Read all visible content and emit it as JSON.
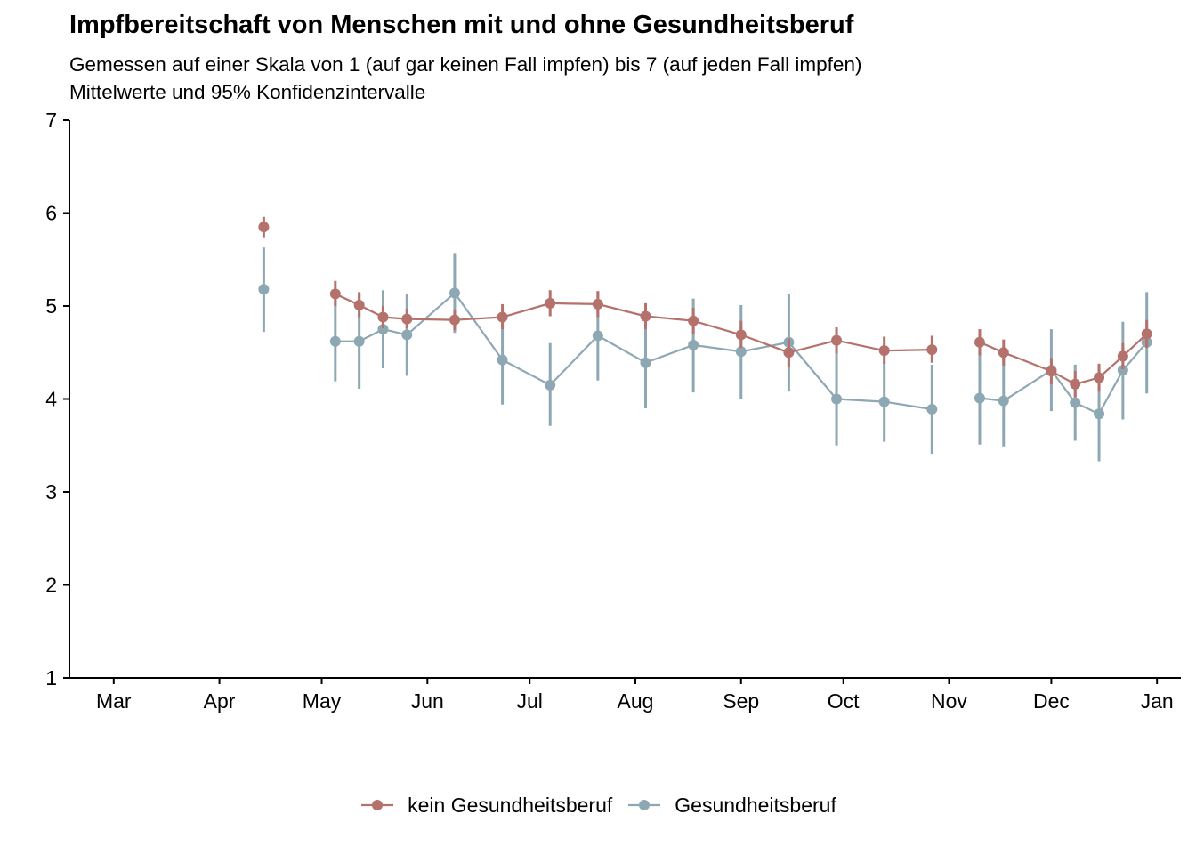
{
  "chart_data": {
    "type": "line",
    "title": "Impfbereitschaft von Menschen mit und ohne Gesundheitsberuf",
    "subtitle_line1": "Gemessen auf einer Skala von 1 (auf gar keinen Fall impfen) bis 7 (auf jeden Fall impfen)",
    "subtitle_line2": "Mittelwerte und 95% Konfidenzintervalle",
    "xlabel": "",
    "ylabel": "",
    "xlim": [
      -13,
      313
    ],
    "ylim": [
      1,
      7
    ],
    "x_ticks": [
      {
        "day": 0,
        "label": "Mar"
      },
      {
        "day": 31,
        "label": "Apr"
      },
      {
        "day": 61,
        "label": "May"
      },
      {
        "day": 92,
        "label": "Jun"
      },
      {
        "day": 122,
        "label": "Jul"
      },
      {
        "day": 153,
        "label": "Aug"
      },
      {
        "day": 184,
        "label": "Sep"
      },
      {
        "day": 214,
        "label": "Oct"
      },
      {
        "day": 245,
        "label": "Nov"
      },
      {
        "day": 275,
        "label": "Dec"
      },
      {
        "day": 306,
        "label": "Jan"
      }
    ],
    "y_ticks": [
      1,
      2,
      3,
      4,
      5,
      6,
      7
    ],
    "legend_position": "bottom",
    "series": [
      {
        "name": "kein Gesundheitsberuf",
        "color": "#b5716b",
        "points": [
          {
            "day": 44,
            "mean": 5.85,
            "lower": 5.74,
            "upper": 5.96,
            "new_segment": true
          },
          {
            "day": 65,
            "mean": 5.13,
            "lower": 5.0,
            "upper": 5.27,
            "new_segment": true
          },
          {
            "day": 72,
            "mean": 5.01,
            "lower": 4.88,
            "upper": 5.15
          },
          {
            "day": 79,
            "mean": 4.88,
            "lower": 4.76,
            "upper": 5.0
          },
          {
            "day": 86,
            "mean": 4.86,
            "lower": 4.76,
            "upper": 4.97
          },
          {
            "day": 100,
            "mean": 4.85,
            "lower": 4.74,
            "upper": 4.96
          },
          {
            "day": 114,
            "mean": 4.88,
            "lower": 4.75,
            "upper": 5.02
          },
          {
            "day": 128,
            "mean": 5.03,
            "lower": 4.89,
            "upper": 5.17
          },
          {
            "day": 142,
            "mean": 5.02,
            "lower": 4.88,
            "upper": 5.16
          },
          {
            "day": 156,
            "mean": 4.89,
            "lower": 4.75,
            "upper": 5.03
          },
          {
            "day": 170,
            "mean": 4.84,
            "lower": 4.7,
            "upper": 4.98
          },
          {
            "day": 184,
            "mean": 4.69,
            "lower": 4.55,
            "upper": 4.84
          },
          {
            "day": 198,
            "mean": 4.5,
            "lower": 4.35,
            "upper": 4.65
          },
          {
            "day": 212,
            "mean": 4.63,
            "lower": 4.49,
            "upper": 4.77
          },
          {
            "day": 226,
            "mean": 4.52,
            "lower": 4.38,
            "upper": 4.67
          },
          {
            "day": 240,
            "mean": 4.53,
            "lower": 4.39,
            "upper": 4.68
          },
          {
            "day": 254,
            "mean": 4.61,
            "lower": 4.47,
            "upper": 4.75,
            "new_segment": true
          },
          {
            "day": 261,
            "mean": 4.5,
            "lower": 4.36,
            "upper": 4.64
          },
          {
            "day": 275,
            "mean": 4.3,
            "lower": 4.16,
            "upper": 4.44
          },
          {
            "day": 282,
            "mean": 4.16,
            "lower": 4.02,
            "upper": 4.3
          },
          {
            "day": 289,
            "mean": 4.23,
            "lower": 4.08,
            "upper": 4.38
          },
          {
            "day": 296,
            "mean": 4.46,
            "lower": 4.32,
            "upper": 4.6
          },
          {
            "day": 303,
            "mean": 4.7,
            "lower": 4.55,
            "upper": 4.85
          }
        ]
      },
      {
        "name": "Gesundheitsberuf",
        "color": "#8ea8b3",
        "points": [
          {
            "day": 44,
            "mean": 5.18,
            "lower": 4.72,
            "upper": 5.63,
            "new_segment": true
          },
          {
            "day": 65,
            "mean": 4.62,
            "lower": 4.19,
            "upper": 5.07,
            "new_segment": true
          },
          {
            "day": 72,
            "mean": 4.62,
            "lower": 4.11,
            "upper": 5.14
          },
          {
            "day": 79,
            "mean": 4.75,
            "lower": 4.33,
            "upper": 5.17
          },
          {
            "day": 86,
            "mean": 4.69,
            "lower": 4.25,
            "upper": 5.13
          },
          {
            "day": 100,
            "mean": 5.14,
            "lower": 4.71,
            "upper": 5.57
          },
          {
            "day": 114,
            "mean": 4.42,
            "lower": 3.94,
            "upper": 4.9
          },
          {
            "day": 128,
            "mean": 4.15,
            "lower": 3.71,
            "upper": 4.6
          },
          {
            "day": 142,
            "mean": 4.68,
            "lower": 4.2,
            "upper": 5.16
          },
          {
            "day": 156,
            "mean": 4.39,
            "lower": 3.9,
            "upper": 4.88
          },
          {
            "day": 170,
            "mean": 4.58,
            "lower": 4.07,
            "upper": 5.08
          },
          {
            "day": 184,
            "mean": 4.51,
            "lower": 4.0,
            "upper": 5.01
          },
          {
            "day": 198,
            "mean": 4.61,
            "lower": 4.08,
            "upper": 5.13
          },
          {
            "day": 212,
            "mean": 4.0,
            "lower": 3.5,
            "upper": 4.51
          },
          {
            "day": 226,
            "mean": 3.97,
            "lower": 3.54,
            "upper": 4.4
          },
          {
            "day": 240,
            "mean": 3.89,
            "lower": 3.41,
            "upper": 4.37
          },
          {
            "day": 254,
            "mean": 4.01,
            "lower": 3.51,
            "upper": 4.51,
            "new_segment": true
          },
          {
            "day": 261,
            "mean": 3.98,
            "lower": 3.49,
            "upper": 4.47
          },
          {
            "day": 275,
            "mean": 4.31,
            "lower": 3.87,
            "upper": 4.75
          },
          {
            "day": 282,
            "mean": 3.96,
            "lower": 3.55,
            "upper": 4.37
          },
          {
            "day": 289,
            "mean": 3.84,
            "lower": 3.33,
            "upper": 4.36
          },
          {
            "day": 296,
            "mean": 4.31,
            "lower": 3.78,
            "upper": 4.83
          },
          {
            "day": 303,
            "mean": 4.61,
            "lower": 4.06,
            "upper": 5.15
          }
        ]
      }
    ]
  }
}
